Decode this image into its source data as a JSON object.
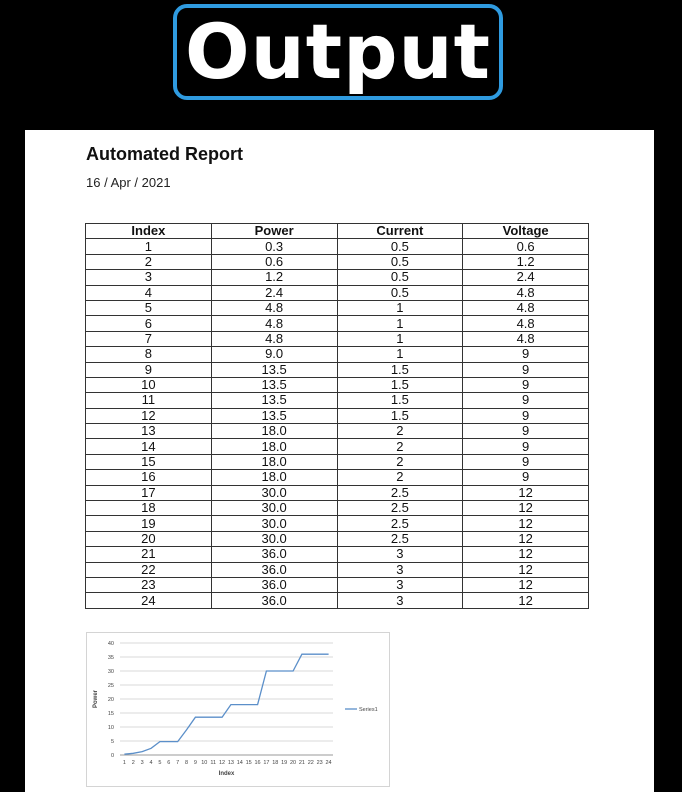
{
  "banner": {
    "label": "Output"
  },
  "report": {
    "title": "Automated Report",
    "date": "16 / Apr / 2021"
  },
  "table": {
    "headers": [
      "Index",
      "Power",
      "Current",
      "Voltage"
    ],
    "rows": [
      [
        "1",
        "0.3",
        "0.5",
        "0.6"
      ],
      [
        "2",
        "0.6",
        "0.5",
        "1.2"
      ],
      [
        "3",
        "1.2",
        "0.5",
        "2.4"
      ],
      [
        "4",
        "2.4",
        "0.5",
        "4.8"
      ],
      [
        "5",
        "4.8",
        "1",
        "4.8"
      ],
      [
        "6",
        "4.8",
        "1",
        "4.8"
      ],
      [
        "7",
        "4.8",
        "1",
        "4.8"
      ],
      [
        "8",
        "9.0",
        "1",
        "9"
      ],
      [
        "9",
        "13.5",
        "1.5",
        "9"
      ],
      [
        "10",
        "13.5",
        "1.5",
        "9"
      ],
      [
        "11",
        "13.5",
        "1.5",
        "9"
      ],
      [
        "12",
        "13.5",
        "1.5",
        "9"
      ],
      [
        "13",
        "18.0",
        "2",
        "9"
      ],
      [
        "14",
        "18.0",
        "2",
        "9"
      ],
      [
        "15",
        "18.0",
        "2",
        "9"
      ],
      [
        "16",
        "18.0",
        "2",
        "9"
      ],
      [
        "17",
        "30.0",
        "2.5",
        "12"
      ],
      [
        "18",
        "30.0",
        "2.5",
        "12"
      ],
      [
        "19",
        "30.0",
        "2.5",
        "12"
      ],
      [
        "20",
        "30.0",
        "2.5",
        "12"
      ],
      [
        "21",
        "36.0",
        "3",
        "12"
      ],
      [
        "22",
        "36.0",
        "3",
        "12"
      ],
      [
        "23",
        "36.0",
        "3",
        "12"
      ],
      [
        "24",
        "36.0",
        "3",
        "12"
      ]
    ]
  },
  "chart_data": {
    "type": "line",
    "title": "",
    "xlabel": "Index",
    "ylabel": "Power",
    "ylim": [
      0,
      40
    ],
    "yticks": [
      "0",
      "5",
      "10",
      "15",
      "20",
      "25",
      "30",
      "35",
      "40"
    ],
    "categories": [
      "1",
      "2",
      "3",
      "4",
      "5",
      "6",
      "7",
      "8",
      "9",
      "10",
      "11",
      "12",
      "13",
      "14",
      "15",
      "16",
      "17",
      "18",
      "19",
      "20",
      "21",
      "22",
      "23",
      "24"
    ],
    "series": [
      {
        "name": "Series1",
        "values": [
          0.3,
          0.6,
          1.2,
          2.4,
          4.8,
          4.8,
          4.8,
          9.0,
          13.5,
          13.5,
          13.5,
          13.5,
          18.0,
          18.0,
          18.0,
          18.0,
          30.0,
          30.0,
          30.0,
          30.0,
          36.0,
          36.0,
          36.0,
          36.0
        ]
      }
    ],
    "legend": "right",
    "grid": true,
    "colors": {
      "line": "#5b8fc9",
      "grid": "#d9d9d9",
      "axis": "#9a9a9a",
      "text": "#444444"
    }
  }
}
